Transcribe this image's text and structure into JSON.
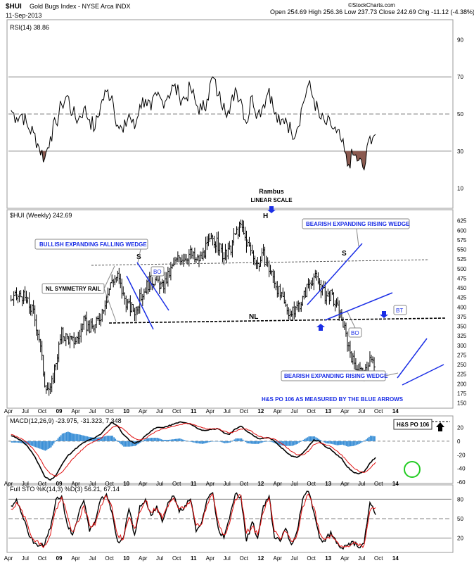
{
  "header": {
    "symbol": "$HUI",
    "name": "Gold Bugs Index - NYSE Arca INDX",
    "date": "11-Sep-2013",
    "quote": "Open 254.69  High 256.36  Low 237.73  Close 242.69  Chg -11.12 (-4.38%)",
    "credit": "©StockCharts.com"
  },
  "colors": {
    "price": "#000000",
    "annotation_blue": "#1a2ee6",
    "gray_line": "#808080",
    "rsi_fill": "#8b5a50",
    "macd_hist": "#3a8fd6",
    "macd_signal": "#e01010",
    "circle": "#22cc22"
  },
  "timeline": {
    "start": "2008-04-01",
    "end": "2014-11-01",
    "labels": [
      "Apr",
      "Jul",
      "Oct",
      "09",
      "Apr",
      "Jul",
      "Oct",
      "10",
      "Apr",
      "Jul",
      "Oct",
      "11",
      "Apr",
      "Jul",
      "Oct",
      "12",
      "Apr",
      "Jul",
      "Oct",
      "13",
      "Apr",
      "Jul",
      "Oct",
      "14"
    ]
  },
  "chart_data": [
    {
      "type": "line",
      "name": "rsi",
      "title": "RSI(14) 38.86",
      "ylim": [
        0,
        100
      ],
      "yticks": [
        10,
        30,
        50,
        70,
        90
      ],
      "reference_lines": [
        30,
        50,
        70
      ],
      "fill_below": 30,
      "x": [
        "2008-04",
        "2008-05",
        "2008-06",
        "2008-07",
        "2008-08",
        "2008-09",
        "2008-10",
        "2008-11",
        "2008-12",
        "2009-01",
        "2009-02",
        "2009-03",
        "2009-04",
        "2009-05",
        "2009-06",
        "2009-07",
        "2009-08",
        "2009-09",
        "2009-10",
        "2009-11",
        "2009-12",
        "2010-01",
        "2010-02",
        "2010-03",
        "2010-04",
        "2010-05",
        "2010-06",
        "2010-07",
        "2010-08",
        "2010-09",
        "2010-10",
        "2010-11",
        "2010-12",
        "2011-01",
        "2011-02",
        "2011-03",
        "2011-04",
        "2011-05",
        "2011-06",
        "2011-07",
        "2011-08",
        "2011-09",
        "2011-10",
        "2011-11",
        "2011-12",
        "2012-01",
        "2012-02",
        "2012-03",
        "2012-04",
        "2012-05",
        "2012-06",
        "2012-07",
        "2012-08",
        "2012-09",
        "2012-10",
        "2012-11",
        "2012-12",
        "2013-01",
        "2013-02",
        "2013-03",
        "2013-04",
        "2013-05",
        "2013-06",
        "2013-07",
        "2013-08",
        "2013-09"
      ],
      "y": [
        52,
        48,
        50,
        43,
        40,
        32,
        26,
        38,
        45,
        55,
        60,
        50,
        47,
        53,
        47,
        42,
        55,
        62,
        60,
        44,
        40,
        50,
        42,
        55,
        58,
        52,
        60,
        57,
        60,
        65,
        60,
        58,
        64,
        55,
        52,
        58,
        70,
        60,
        56,
        50,
        64,
        58,
        45,
        60,
        50,
        55,
        64,
        50,
        44,
        48,
        40,
        42,
        55,
        66,
        58,
        48,
        45,
        44,
        40,
        35,
        22,
        28,
        25,
        20,
        38,
        39
      ]
    },
    {
      "type": "bar",
      "name": "price",
      "title": "$HUI (Weekly) 242.69",
      "ylim": [
        140,
        650
      ],
      "yticks": [
        150,
        175,
        200,
        225,
        250,
        275,
        300,
        325,
        350,
        375,
        400,
        425,
        450,
        475,
        500,
        525,
        550,
        575,
        600,
        625
      ],
      "x": [
        "2008-04",
        "2008-05",
        "2008-06",
        "2008-07",
        "2008-08",
        "2008-09",
        "2008-10",
        "2008-11",
        "2008-12",
        "2009-01",
        "2009-02",
        "2009-03",
        "2009-04",
        "2009-05",
        "2009-06",
        "2009-07",
        "2009-08",
        "2009-09",
        "2009-10",
        "2009-11",
        "2009-12",
        "2010-01",
        "2010-02",
        "2010-03",
        "2010-04",
        "2010-05",
        "2010-06",
        "2010-07",
        "2010-08",
        "2010-09",
        "2010-10",
        "2010-11",
        "2010-12",
        "2011-01",
        "2011-02",
        "2011-03",
        "2011-04",
        "2011-05",
        "2011-06",
        "2011-07",
        "2011-08",
        "2011-09",
        "2011-10",
        "2011-11",
        "2011-12",
        "2012-01",
        "2012-02",
        "2012-03",
        "2012-04",
        "2012-05",
        "2012-06",
        "2012-07",
        "2012-08",
        "2012-09",
        "2012-10",
        "2012-11",
        "2012-12",
        "2013-01",
        "2013-02",
        "2013-03",
        "2013-04",
        "2013-05",
        "2013-06",
        "2013-07",
        "2013-08",
        "2013-09"
      ],
      "y": [
        420,
        425,
        430,
        410,
        385,
        320,
        205,
        180,
        260,
        330,
        320,
        310,
        320,
        360,
        345,
        350,
        380,
        425,
        470,
        480,
        430,
        400,
        390,
        420,
        450,
        470,
        470,
        450,
        480,
        510,
        530,
        530,
        540,
        520,
        530,
        560,
        580,
        560,
        530,
        545,
        590,
        610,
        570,
        540,
        510,
        535,
        500,
        470,
        430,
        400,
        380,
        400,
        420,
        460,
        480,
        460,
        430,
        430,
        400,
        370,
        310,
        260,
        240,
        220,
        265,
        242
      ]
    },
    {
      "type": "line",
      "name": "macd",
      "title": "MACD(12,26,9) -23.975, -31.323, 7.348",
      "ylim": [
        -60,
        35
      ],
      "yticks": [
        -60,
        -40,
        -20,
        0,
        20
      ],
      "reference_lines": [
        0
      ],
      "x": [
        "2008-04",
        "2008-05",
        "2008-06",
        "2008-07",
        "2008-08",
        "2008-09",
        "2008-10",
        "2008-11",
        "2008-12",
        "2009-01",
        "2009-02",
        "2009-03",
        "2009-04",
        "2009-05",
        "2009-06",
        "2009-07",
        "2009-08",
        "2009-09",
        "2009-10",
        "2009-11",
        "2009-12",
        "2010-01",
        "2010-02",
        "2010-03",
        "2010-04",
        "2010-05",
        "2010-06",
        "2010-07",
        "2010-08",
        "2010-09",
        "2010-10",
        "2010-11",
        "2010-12",
        "2011-01",
        "2011-02",
        "2011-03",
        "2011-04",
        "2011-05",
        "2011-06",
        "2011-07",
        "2011-08",
        "2011-09",
        "2011-10",
        "2011-11",
        "2011-12",
        "2012-01",
        "2012-02",
        "2012-03",
        "2012-04",
        "2012-05",
        "2012-06",
        "2012-07",
        "2012-08",
        "2012-09",
        "2012-10",
        "2012-11",
        "2012-12",
        "2013-01",
        "2013-02",
        "2013-03",
        "2013-04",
        "2013-05",
        "2013-06",
        "2013-07",
        "2013-08",
        "2013-09"
      ],
      "series": [
        {
          "values": [
            8,
            5,
            0,
            -8,
            -20,
            -35,
            -52,
            -57,
            -50,
            -35,
            -22,
            -15,
            -8,
            -2,
            2,
            5,
            10,
            20,
            28,
            22,
            10,
            2,
            -3,
            0,
            8,
            15,
            20,
            20,
            22,
            25,
            28,
            27,
            25,
            20,
            16,
            16,
            18,
            18,
            12,
            10,
            18,
            22,
            15,
            10,
            4,
            4,
            5,
            0,
            -8,
            -15,
            -22,
            -24,
            -18,
            -8,
            2,
            0,
            -8,
            -12,
            -20,
            -25,
            -38,
            -45,
            -48,
            -45,
            -32,
            -24
          ]
        },
        {
          "values": [
            10,
            7,
            3,
            -3,
            -12,
            -24,
            -38,
            -48,
            -52,
            -46,
            -36,
            -26,
            -18,
            -10,
            -4,
            0,
            4,
            12,
            20,
            23,
            18,
            10,
            4,
            2,
            4,
            10,
            15,
            18,
            20,
            22,
            24,
            26,
            26,
            23,
            20,
            18,
            18,
            18,
            15,
            12,
            14,
            18,
            18,
            14,
            8,
            5,
            5,
            3,
            -2,
            -8,
            -15,
            -20,
            -20,
            -15,
            -5,
            -2,
            -5,
            -8,
            -14,
            -20,
            -30,
            -38,
            -44,
            -46,
            -40,
            -31
          ]
        }
      ],
      "histogram": [
        -2,
        -2,
        -3,
        -5,
        -8,
        -11,
        -14,
        -9,
        2,
        11,
        14,
        11,
        10,
        8,
        6,
        5,
        6,
        8,
        8,
        -1,
        -8,
        -8,
        -7,
        -2,
        4,
        5,
        5,
        2,
        2,
        3,
        4,
        1,
        -1,
        -3,
        -4,
        -2,
        0,
        0,
        -3,
        -2,
        4,
        4,
        -3,
        -4,
        -4,
        -1,
        0,
        -3,
        -6,
        -7,
        -7,
        -4,
        2,
        7,
        7,
        2,
        -3,
        -4,
        -6,
        -5,
        -8,
        -7,
        -4,
        1,
        8,
        7
      ]
    },
    {
      "type": "line",
      "name": "stochastics",
      "title": "Full STO %K(14,3) %D(3) 56.21, 67.14",
      "ylim": [
        0,
        100
      ],
      "yticks": [
        20,
        50,
        80
      ],
      "reference_lines": [
        20,
        50,
        80
      ],
      "x": [
        "2008-04",
        "2008-05",
        "2008-06",
        "2008-07",
        "2008-08",
        "2008-09",
        "2008-10",
        "2008-11",
        "2008-12",
        "2009-01",
        "2009-02",
        "2009-03",
        "2009-04",
        "2009-05",
        "2009-06",
        "2009-07",
        "2009-08",
        "2009-09",
        "2009-10",
        "2009-11",
        "2009-12",
        "2010-01",
        "2010-02",
        "2010-03",
        "2010-04",
        "2010-05",
        "2010-06",
        "2010-07",
        "2010-08",
        "2010-09",
        "2010-10",
        "2010-11",
        "2010-12",
        "2011-01",
        "2011-02",
        "2011-03",
        "2011-04",
        "2011-05",
        "2011-06",
        "2011-07",
        "2011-08",
        "2011-09",
        "2011-10",
        "2011-11",
        "2011-12",
        "2012-01",
        "2012-02",
        "2012-03",
        "2012-04",
        "2012-05",
        "2012-06",
        "2012-07",
        "2012-08",
        "2012-09",
        "2012-10",
        "2012-11",
        "2012-12",
        "2013-01",
        "2013-02",
        "2013-03",
        "2013-04",
        "2013-05",
        "2013-06",
        "2013-07",
        "2013-08",
        "2013-09"
      ],
      "series": [
        {
          "values": [
            70,
            80,
            55,
            30,
            12,
            8,
            10,
            35,
            80,
            85,
            40,
            25,
            55,
            78,
            30,
            45,
            80,
            88,
            60,
            15,
            20,
            65,
            25,
            70,
            80,
            55,
            70,
            45,
            75,
            85,
            60,
            70,
            80,
            30,
            45,
            80,
            90,
            35,
            20,
            50,
            88,
            85,
            15,
            45,
            20,
            70,
            85,
            20,
            15,
            35,
            10,
            30,
            80,
            92,
            60,
            20,
            15,
            30,
            12,
            5,
            8,
            15,
            5,
            12,
            75,
            56
          ]
        },
        {
          "values": [
            65,
            75,
            62,
            40,
            18,
            10,
            9,
            25,
            65,
            83,
            55,
            30,
            45,
            70,
            40,
            40,
            70,
            85,
            68,
            25,
            18,
            52,
            35,
            60,
            78,
            60,
            66,
            50,
            68,
            82,
            65,
            68,
            78,
            40,
            42,
            72,
            88,
            45,
            25,
            42,
            80,
            86,
            28,
            38,
            25,
            60,
            82,
            30,
            18,
            30,
            15,
            25,
            68,
            88,
            68,
            28,
            18,
            25,
            15,
            8,
            8,
            12,
            8,
            10,
            62,
            67
          ]
        }
      ]
    }
  ],
  "annotations": {
    "rambus": "Rambus",
    "linear_scale": "LINEAR SCALE",
    "head": "H",
    "shoulder_left": "S",
    "shoulder_right": "S",
    "nl": "NL",
    "bullish_wedge": "BULLISH EXPANDING FALLING WEDGE",
    "nl_symmetry": "NL SYMMETRY RAIL",
    "bearish_wedge_top": "BEARISH EXPANDING RISING WEDGE",
    "bearish_wedge_bottom": "BEARISH EXPANDING RISING WEDGE",
    "bo1": "BO",
    "bo2": "BO",
    "bt": "BT",
    "hs_po_text": "H&S PO 106 AS MEASURED BY THE BLUE ARROWS",
    "hs_po_box": "H&S PO 106"
  }
}
